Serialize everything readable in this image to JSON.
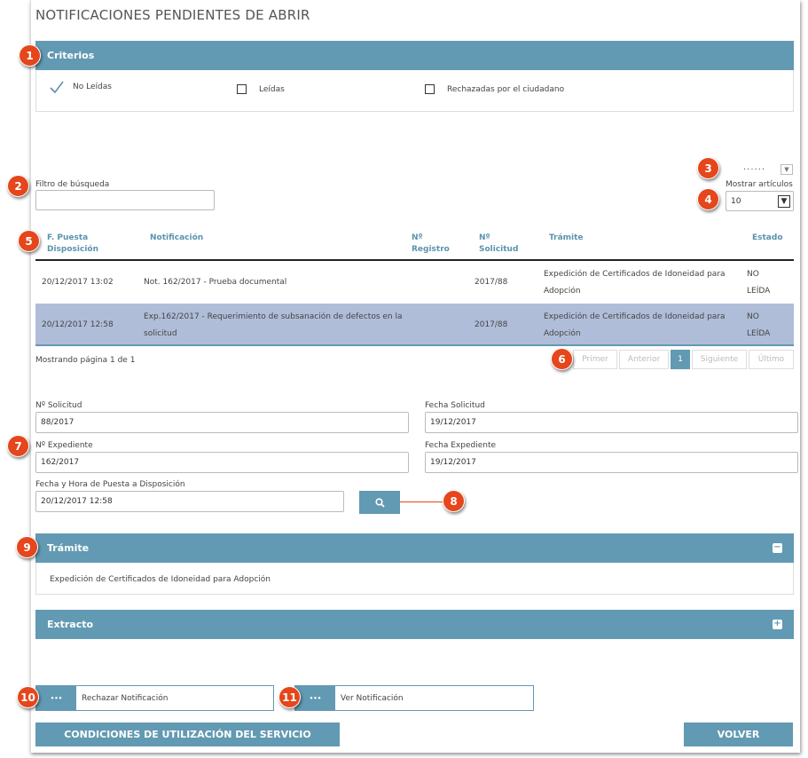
{
  "page_title": "NOTIFICACIONES PENDIENTES DE ABRIR",
  "criterios": {
    "title": "Criterios",
    "options": [
      {
        "label": "No Leídas",
        "checked": true
      },
      {
        "label": "Leídas",
        "checked": false
      },
      {
        "label": "Rechazadas por el ciudadano",
        "checked": false
      }
    ]
  },
  "filter": {
    "label": "Filtro de búsqueda",
    "value": ""
  },
  "columns_menu": "......",
  "show_items": {
    "label": "Mostrar artículos",
    "value": "10"
  },
  "table": {
    "headers": [
      "F. Puesta Disposición",
      "Notificación",
      "Nº Registro",
      "Nº Solicitud",
      "Trámite",
      "Estado"
    ],
    "rows": [
      {
        "fecha": "20/12/2017 13:02",
        "notificacion": "Not. 162/2017 - Prueba documental",
        "registro": "",
        "solicitud": "2017/88",
        "tramite": "Expedición de Certificados de Idoneidad para Adopción",
        "estado": "NO LEÍDA",
        "selected": false
      },
      {
        "fecha": "20/12/2017 12:58",
        "notificacion": "Exp.162/2017 - Requerimiento de subsanación de defectos en la solicitud",
        "registro": "",
        "solicitud": "2017/88",
        "tramite": "Expedición de Certificados de Idoneidad para Adopción",
        "estado": "NO LEÍDA",
        "selected": true
      }
    ]
  },
  "paging": {
    "status": "Mostrando página 1 de 1",
    "first": "Primer",
    "prev": "Anterior",
    "current": "1",
    "next": "Siguiente",
    "last": "Último"
  },
  "detail": {
    "solicitud_label": "Nº Solicitud",
    "solicitud": "88/2017",
    "fecha_solicitud_label": "Fecha Solicitud",
    "fecha_solicitud": "19/12/2017",
    "expediente_label": "Nº Expediente",
    "expediente": "162/2017",
    "fecha_expediente_label": "Fecha Expediente",
    "fecha_expediente": "19/12/2017",
    "puesta_label": "Fecha y Hora de Puesta a Disposición",
    "puesta": "20/12/2017 12:58"
  },
  "tramite": {
    "title": "Trámite",
    "text": "Expedición de Certificados de Idoneidad para Adopción"
  },
  "extracto": {
    "title": "Extracto"
  },
  "actions": {
    "rechazar": "Rechazar Notificación",
    "ver": "Ver Notificación",
    "dots": "•••",
    "condiciones": "CONDICIONES DE UTILIZACIÓN DEL SERVICIO",
    "volver": "VOLVER"
  },
  "badges": [
    "1",
    "2",
    "3",
    "4",
    "5",
    "6",
    "7",
    "8",
    "9",
    "10",
    "11"
  ],
  "colors": {
    "accent": "#6299b3",
    "selected_row": "#b0bdd9",
    "badge": "#e5461b"
  }
}
